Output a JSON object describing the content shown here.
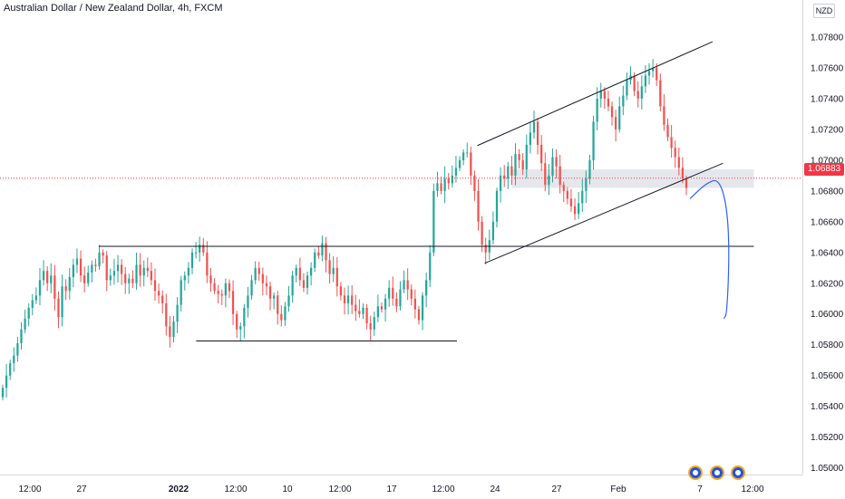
{
  "header": {
    "title": "Australian Dollar / New Zealand Dollar, 4h, FXCM"
  },
  "price_axis": {
    "currency": "NZD"
  },
  "last_price": {
    "label": "1.06883",
    "value": 1.06883
  },
  "colors": {
    "up": "#26a69a",
    "down": "#ef5350",
    "last_price": "#f23645",
    "projection": "#2962ff",
    "zone": "#d1d4dc"
  },
  "event_icons": [
    "earnings-icon",
    "earnings-icon",
    "earnings-icon"
  ],
  "chart_data": {
    "type": "candlestick",
    "title": "Australian Dollar / New Zealand Dollar, 4h, FXCM",
    "y_axis": {
      "ticks": [
        "1.07800",
        "1.07600",
        "1.07400",
        "1.07200",
        "1.07000",
        "1.06800",
        "1.06600",
        "1.06400",
        "1.06200",
        "1.06000",
        "1.05800",
        "1.05600",
        "1.05400",
        "1.05200",
        "1.05000"
      ],
      "ylim": [
        1.0498,
        1.079
      ]
    },
    "x_axis": {
      "ticks": [
        {
          "label": "12:00",
          "bold": false
        },
        {
          "label": "27",
          "bold": false
        },
        {
          "label": "2022",
          "bold": true
        },
        {
          "label": "12:00",
          "bold": false
        },
        {
          "label": "10",
          "bold": false
        },
        {
          "label": "12:00",
          "bold": false
        },
        {
          "label": "17",
          "bold": false
        },
        {
          "label": "12:00",
          "bold": false
        },
        {
          "label": "24",
          "bold": false
        },
        {
          "label": "27",
          "bold": false
        },
        {
          "label": "Feb",
          "bold": false
        },
        {
          "label": "7",
          "bold": false
        },
        {
          "label": "12:00",
          "bold": false
        }
      ]
    },
    "price_path": [
      1.0552,
      1.056,
      1.0568,
      1.0573,
      1.0581,
      1.059,
      1.0597,
      1.0604,
      1.0609,
      1.0612,
      1.0622,
      1.0628,
      1.062,
      1.0625,
      1.061,
      1.0598,
      1.0618,
      1.0615,
      1.0624,
      1.0632,
      1.0636,
      1.0625,
      1.062,
      1.0627,
      1.0632,
      1.0631,
      1.064,
      1.0638,
      1.0622,
      1.0625,
      1.0628,
      1.0632,
      1.0626,
      1.062,
      1.0623,
      1.062,
      1.0632,
      1.0625,
      1.063,
      1.0628,
      1.0622,
      1.0615,
      1.0612,
      1.0607,
      1.0592,
      1.0585,
      1.0595,
      1.0606,
      1.0622,
      1.0625,
      1.063,
      1.064,
      1.064,
      1.0645,
      1.064,
      1.0625,
      1.062,
      1.0615,
      1.0613,
      1.0612,
      1.062,
      1.0615,
      1.06,
      1.059,
      1.0592,
      1.0604,
      1.0612,
      1.0622,
      1.063,
      1.0626,
      1.062,
      1.0618,
      1.061,
      1.0612,
      1.06,
      1.0596,
      1.0605,
      1.0612,
      1.0625,
      1.063,
      1.0622,
      1.0617,
      1.0625,
      1.063,
      1.064,
      1.0638,
      1.0646,
      1.0635,
      1.0626,
      1.063,
      1.0618,
      1.0612,
      1.0607,
      1.0612,
      1.0606,
      1.0602,
      1.06,
      1.0604,
      1.0594,
      1.059,
      1.0598,
      1.0605,
      1.0603,
      1.061,
      1.0617,
      1.061,
      1.0605,
      1.0616,
      1.0622,
      1.0616,
      1.061,
      1.0603,
      1.0596,
      1.0612,
      1.0622,
      1.064,
      1.068,
      1.0685,
      1.068,
      1.0688,
      1.0685,
      1.069,
      1.0695,
      1.07,
      1.0705,
      1.0705,
      1.069,
      1.068,
      1.066,
      1.0645,
      1.064,
      1.0648,
      1.066,
      1.068,
      1.069,
      1.0688,
      1.0696,
      1.069,
      1.0704,
      1.07,
      1.0694,
      1.071,
      1.0718,
      1.0725,
      1.071,
      1.0698,
      1.0684,
      1.069,
      1.0702,
      1.0696,
      1.0684,
      1.068,
      1.0675,
      1.067,
      1.0665,
      1.0672,
      1.068,
      1.0688,
      1.07,
      1.0725,
      1.074,
      1.0745,
      1.074,
      1.0735,
      1.0728,
      1.072,
      1.0735,
      1.0742,
      1.0752,
      1.0755,
      1.0745,
      1.074,
      1.0748,
      1.0755,
      1.0758,
      1.076,
      1.0752,
      1.0735,
      1.0723,
      1.0715,
      1.0708,
      1.0702,
      1.0695,
      1.0688,
      1.0682
    ],
    "annotations": [
      {
        "type": "horizontal_line",
        "name": "range-top-line",
        "x0": 0.123,
        "x1": 0.9395,
        "y": 1.0644
      },
      {
        "type": "horizontal_line",
        "name": "range-bottom-line",
        "x0": 0.2445,
        "x1": 0.5695,
        "y": 1.05825
      },
      {
        "type": "trendline",
        "name": "channel-upper-line",
        "x0": 0.595,
        "y0": 1.07095,
        "x1": 0.888,
        "y1": 1.0777
      },
      {
        "type": "trendline",
        "name": "channel-lower-line",
        "x0": 0.604,
        "y0": 1.0633,
        "x1": 0.901,
        "y1": 1.0698
      },
      {
        "type": "zone",
        "name": "support-zone",
        "x0": 0.638,
        "x1": 0.9395,
        "y0": 1.0682,
        "y1": 1.0694
      },
      {
        "type": "horizontal_dotted_line",
        "name": "last-price-line",
        "y": 1.06883
      }
    ],
    "projection": [
      [
        0.86,
        1.0675
      ],
      [
        0.88,
        1.0685
      ],
      [
        0.896,
        1.0688
      ],
      [
        0.906,
        1.067
      ],
      [
        0.909,
        1.064
      ],
      [
        0.906,
        1.06
      ],
      [
        0.902,
        1.0597
      ]
    ]
  }
}
